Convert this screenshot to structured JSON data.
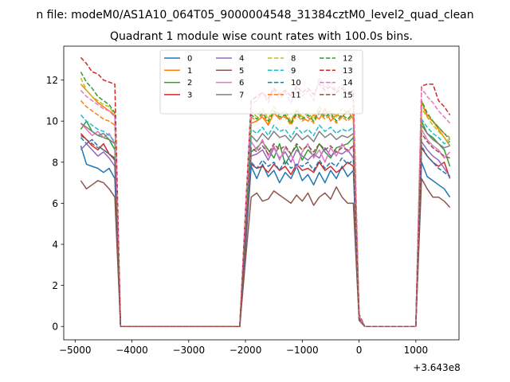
{
  "figure": {
    "suptitle": "n file: modeM0/AS1A10_064T05_9000004548_31384cztM0_level2_quad_clean",
    "offset_label": "+3.643e8"
  },
  "chart_data": {
    "type": "line",
    "title": "Quadrant 1 module wise count rates with 100.0s bins.",
    "xlabel": "",
    "ylabel": "",
    "xlim": [
      -5200,
      1760
    ],
    "ylim": [
      -0.65,
      13.65
    ],
    "x_offset": 364300000,
    "xticks": [
      -5000,
      -4000,
      -3000,
      -2000,
      -1000,
      0,
      1000
    ],
    "xtick_labels": [
      "−5000",
      "−4000",
      "−3000",
      "−2000",
      "−1000",
      "0",
      "1000"
    ],
    "yticks": [
      0,
      2,
      4,
      6,
      8,
      10,
      12
    ],
    "ytick_labels": [
      "0",
      "2",
      "4",
      "6",
      "8",
      "10",
      "12"
    ],
    "grid": false,
    "legend_placement": "top-center",
    "legend_columns": 4,
    "x": [
      -4900,
      -4800,
      -4700,
      -4600,
      -4500,
      -4400,
      -4300,
      -4200,
      -4100,
      -4000,
      -3900,
      -3800,
      -3700,
      -3600,
      -3500,
      -3400,
      -3300,
      -3200,
      -3100,
      -3000,
      -2900,
      -2800,
      -2700,
      -2600,
      -2500,
      -2400,
      -2300,
      -2200,
      -2100,
      -2000,
      -1900,
      -1800,
      -1700,
      -1600,
      -1500,
      -1400,
      -1300,
      -1200,
      -1100,
      -1000,
      -900,
      -800,
      -700,
      -600,
      -500,
      -400,
      -300,
      -200,
      -100,
      0,
      100,
      200,
      300,
      400,
      500,
      600,
      700,
      800,
      900,
      1000,
      1100,
      1200,
      1300,
      1400,
      1500,
      1600
    ],
    "series": [
      {
        "name": "0",
        "color": "#1f77b4",
        "dash": "solid",
        "values": [
          8.8,
          7.9,
          7.8,
          7.7,
          7.5,
          7.7,
          7.2,
          0,
          0,
          0,
          0,
          0,
          0,
          0,
          0,
          0,
          0,
          0,
          0,
          0,
          0,
          0,
          0,
          0,
          0,
          0,
          0,
          0,
          0,
          3.8,
          7.8,
          7.2,
          7.9,
          7.3,
          7.6,
          7.0,
          7.5,
          7.2,
          7.8,
          7.1,
          7.4,
          6.9,
          7.5,
          7.0,
          7.6,
          7.2,
          7.8,
          7.3,
          7.6,
          0.4,
          0,
          0,
          0,
          0,
          0,
          0,
          0,
          0,
          0,
          0,
          8.0,
          7.3,
          7.1,
          6.9,
          6.7,
          6.3
        ]
      },
      {
        "name": "1",
        "color": "#ff7f0e",
        "dash": "solid",
        "values": [
          11.8,
          11.5,
          11.2,
          10.9,
          10.7,
          10.5,
          10.3,
          0,
          0,
          0,
          0,
          0,
          0,
          0,
          0,
          0,
          0,
          0,
          0,
          0,
          0,
          0,
          0,
          0,
          0,
          0,
          0,
          0,
          0,
          5.0,
          9.9,
          10.0,
          10.2,
          9.8,
          10.4,
          10.1,
          10.3,
          9.9,
          10.5,
          10.2,
          10.0,
          10.3,
          10.1,
          10.6,
          10.0,
          10.3,
          10.2,
          10.5,
          10.1,
          0.5,
          0,
          0,
          0,
          0,
          0,
          0,
          0,
          0,
          0,
          0,
          11.0,
          10.2,
          10.0,
          9.6,
          9.2,
          8.8
        ]
      },
      {
        "name": "2",
        "color": "#2ca02c",
        "dash": "solid",
        "values": [
          9.6,
          10.0,
          9.5,
          9.3,
          9.2,
          9.1,
          8.6,
          0,
          0,
          0,
          0,
          0,
          0,
          0,
          0,
          0,
          0,
          0,
          0,
          0,
          0,
          0,
          0,
          0,
          0,
          0,
          0,
          0,
          0,
          4.4,
          8.5,
          8.7,
          9.0,
          8.6,
          8.2,
          8.9,
          7.9,
          8.4,
          8.8,
          8.1,
          8.6,
          8.3,
          8.9,
          8.5,
          8.2,
          8.7,
          8.8,
          8.9,
          9.2,
          0.4,
          0,
          0,
          0,
          0,
          0,
          0,
          0,
          0,
          0,
          0,
          10.0,
          9.4,
          9.2,
          8.9,
          8.6,
          7.8
        ]
      },
      {
        "name": "3",
        "color": "#d62728",
        "dash": "solid",
        "values": [
          9.4,
          9.1,
          8.8,
          8.6,
          8.9,
          8.4,
          8.2,
          0,
          0,
          0,
          0,
          0,
          0,
          0,
          0,
          0,
          0,
          0,
          0,
          0,
          0,
          0,
          0,
          0,
          0,
          0,
          0,
          0,
          0,
          4.0,
          7.9,
          7.7,
          7.8,
          7.5,
          7.9,
          7.6,
          7.8,
          7.4,
          7.9,
          7.6,
          7.7,
          7.5,
          8.0,
          7.6,
          7.8,
          7.5,
          7.7,
          8.0,
          7.8,
          0.4,
          0,
          0,
          0,
          0,
          0,
          0,
          0,
          0,
          0,
          0,
          8.7,
          8.3,
          8.0,
          7.8,
          8.0,
          7.2
        ]
      },
      {
        "name": "4",
        "color": "#9467bd",
        "dash": "solid",
        "values": [
          8.6,
          8.9,
          8.6,
          8.3,
          8.5,
          8.2,
          7.8,
          0,
          0,
          0,
          0,
          0,
          0,
          0,
          0,
          0,
          0,
          0,
          0,
          0,
          0,
          0,
          0,
          0,
          0,
          0,
          0,
          0,
          0,
          4.2,
          8.3,
          8.4,
          8.6,
          8.1,
          8.7,
          8.2,
          8.5,
          8.0,
          8.6,
          8.3,
          8.1,
          8.4,
          8.2,
          8.7,
          8.3,
          8.5,
          8.4,
          8.6,
          8.2,
          0.4,
          0,
          0,
          0,
          0,
          0,
          0,
          0,
          0,
          0,
          0,
          9.0,
          8.6,
          8.3,
          8.1,
          7.7,
          7.3
        ]
      },
      {
        "name": "5",
        "color": "#8c564b",
        "dash": "solid",
        "values": [
          7.1,
          6.7,
          6.9,
          7.1,
          7.0,
          6.7,
          6.3,
          0,
          0,
          0,
          0,
          0,
          0,
          0,
          0,
          0,
          0,
          0,
          0,
          0,
          0,
          0,
          0,
          0,
          0,
          0,
          0,
          0,
          0,
          3.2,
          6.3,
          6.5,
          6.1,
          6.2,
          6.6,
          6.4,
          6.2,
          6.0,
          6.4,
          6.1,
          6.5,
          5.9,
          6.3,
          6.5,
          6.2,
          6.8,
          6.3,
          6.0,
          6.0,
          0.3,
          0,
          0,
          0,
          0,
          0,
          0,
          0,
          0,
          0,
          0,
          7.2,
          6.7,
          6.3,
          6.3,
          6.1,
          5.8
        ]
      },
      {
        "name": "6",
        "color": "#e377c2",
        "dash": "solid",
        "values": [
          9.9,
          9.6,
          9.3,
          9.5,
          9.2,
          9.4,
          8.9,
          0,
          0,
          0,
          0,
          0,
          0,
          0,
          0,
          0,
          0,
          0,
          0,
          0,
          0,
          0,
          0,
          0,
          0,
          0,
          0,
          0,
          0,
          4.6,
          9.0,
          8.6,
          9.1,
          8.3,
          8.8,
          8.1,
          8.7,
          8.4,
          7.7,
          8.5,
          8.9,
          8.2,
          8.6,
          8.0,
          8.7,
          8.3,
          8.9,
          8.5,
          8.8,
          0.4,
          0,
          0,
          0,
          0,
          0,
          0,
          0,
          0,
          0,
          0,
          9.6,
          9.1,
          8.8,
          8.6,
          8.2,
          8.5
        ]
      },
      {
        "name": "7",
        "color": "#7f7f7f",
        "dash": "solid",
        "values": [
          9.9,
          9.7,
          9.5,
          9.3,
          9.4,
          9.1,
          8.9,
          0,
          0,
          0,
          0,
          0,
          0,
          0,
          0,
          0,
          0,
          0,
          0,
          0,
          0,
          0,
          0,
          0,
          0,
          0,
          0,
          0,
          0,
          4.6,
          9.3,
          9.0,
          9.4,
          9.1,
          9.5,
          9.2,
          9.3,
          9.0,
          9.4,
          9.1,
          9.3,
          9.0,
          9.5,
          9.2,
          9.4,
          9.1,
          9.3,
          9.2,
          9.4,
          0.4,
          0,
          0,
          0,
          0,
          0,
          0,
          0,
          0,
          0,
          0,
          9.8,
          9.4,
          9.1,
          8.9,
          8.7,
          8.8
        ]
      },
      {
        "name": "8",
        "color": "#bcbd22",
        "dash": "dashed",
        "values": [
          12.1,
          11.5,
          11.2,
          11.0,
          10.8,
          10.7,
          10.3,
          0,
          0,
          0,
          0,
          0,
          0,
          0,
          0,
          0,
          0,
          0,
          0,
          0,
          0,
          0,
          0,
          0,
          0,
          0,
          0,
          0,
          0,
          5.1,
          10.5,
          10.2,
          10.6,
          10.1,
          10.7,
          10.3,
          10.5,
          10.0,
          10.6,
          10.2,
          10.4,
          10.1,
          10.7,
          10.3,
          10.5,
          10.2,
          10.6,
          10.4,
          10.8,
          0.5,
          0,
          0,
          0,
          0,
          0,
          0,
          0,
          0,
          0,
          0,
          10.6,
          10.2,
          9.8,
          9.5,
          9.2,
          9.0
        ]
      },
      {
        "name": "9",
        "color": "#17becf",
        "dash": "dashed",
        "values": [
          10.3,
          10.0,
          9.8,
          9.6,
          9.5,
          9.3,
          9.0,
          0,
          0,
          0,
          0,
          0,
          0,
          0,
          0,
          0,
          0,
          0,
          0,
          0,
          0,
          0,
          0,
          0,
          0,
          0,
          0,
          0,
          0,
          4.8,
          9.6,
          9.4,
          9.7,
          9.3,
          9.8,
          9.5,
          9.6,
          9.2,
          9.7,
          9.4,
          9.6,
          9.3,
          9.8,
          9.5,
          9.7,
          9.4,
          9.6,
          9.5,
          9.7,
          0.4,
          0,
          0,
          0,
          0,
          0,
          0,
          0,
          0,
          0,
          0,
          10.1,
          9.7,
          9.4,
          9.2,
          8.9,
          9.0
        ]
      },
      {
        "name": "10",
        "color": "#1f77b4",
        "dash": "dashed",
        "values": [
          9.2,
          8.9,
          9.1,
          8.8,
          8.6,
          8.4,
          8.1,
          0,
          0,
          0,
          0,
          0,
          0,
          0,
          0,
          0,
          0,
          0,
          0,
          0,
          0,
          0,
          0,
          0,
          0,
          0,
          0,
          0,
          0,
          4.1,
          8.0,
          7.7,
          8.1,
          7.8,
          8.0,
          7.6,
          8.1,
          7.7,
          7.9,
          7.8,
          8.0,
          7.6,
          8.1,
          7.7,
          8.0,
          7.8,
          8.2,
          7.9,
          8.1,
          0.4,
          0,
          0,
          0,
          0,
          0,
          0,
          0,
          0,
          0,
          0,
          8.8,
          8.3,
          8.0,
          7.7,
          7.5,
          7.3
        ]
      },
      {
        "name": "11",
        "color": "#ff7f0e",
        "dash": "dashed",
        "values": [
          11.0,
          10.7,
          10.5,
          10.3,
          10.1,
          10.0,
          9.8,
          0,
          0,
          0,
          0,
          0,
          0,
          0,
          0,
          0,
          0,
          0,
          0,
          0,
          0,
          0,
          0,
          0,
          0,
          0,
          0,
          0,
          0,
          5.0,
          10.2,
          10.0,
          10.3,
          9.9,
          10.4,
          10.1,
          10.2,
          9.8,
          10.3,
          10.0,
          10.2,
          9.9,
          10.4,
          10.1,
          10.3,
          9.9,
          10.2,
          10.0,
          10.3,
          0.5,
          0,
          0,
          0,
          0,
          0,
          0,
          0,
          0,
          0,
          0,
          10.8,
          10.3,
          10.0,
          9.7,
          9.4,
          9.2
        ]
      },
      {
        "name": "12",
        "color": "#2ca02c",
        "dash": "dashed",
        "values": [
          12.4,
          11.9,
          11.6,
          11.2,
          11.0,
          10.8,
          10.4,
          0,
          0,
          0,
          0,
          0,
          0,
          0,
          0,
          0,
          0,
          0,
          0,
          0,
          0,
          0,
          0,
          0,
          0,
          0,
          0,
          0,
          0,
          5.1,
          10.3,
          10.1,
          10.4,
          10.0,
          10.5,
          10.2,
          10.3,
          9.9,
          10.4,
          10.1,
          10.3,
          10.0,
          10.5,
          10.2,
          10.4,
          10.0,
          10.3,
          10.1,
          10.4,
          0.5,
          0,
          0,
          0,
          0,
          0,
          0,
          0,
          0,
          0,
          0,
          11.0,
          10.4,
          10.0,
          9.7,
          9.4,
          9.1
        ]
      },
      {
        "name": "13",
        "color": "#d62728",
        "dash": "dashed",
        "values": [
          13.1,
          12.8,
          12.4,
          12.3,
          12.0,
          11.9,
          11.8,
          0,
          0,
          0,
          0,
          0,
          0,
          0,
          0,
          0,
          0,
          0,
          0,
          0,
          0,
          0,
          0,
          0,
          0,
          0,
          0,
          0,
          0,
          5.6,
          11.0,
          11.2,
          11.4,
          11.1,
          11.6,
          11.3,
          11.5,
          11.2,
          11.7,
          11.4,
          11.6,
          11.3,
          11.8,
          11.5,
          11.7,
          11.4,
          11.6,
          11.3,
          11.5,
          0.6,
          0,
          0,
          0,
          0,
          0,
          0,
          0,
          0,
          0,
          0,
          11.7,
          11.8,
          11.8,
          11.0,
          10.7,
          10.3
        ]
      },
      {
        "name": "14",
        "color": "#e377c2",
        "dash": "dashed",
        "values": [
          11.5,
          11.2,
          11.0,
          10.8,
          10.6,
          10.5,
          10.2,
          0,
          0,
          0,
          0,
          0,
          0,
          0,
          0,
          0,
          0,
          0,
          0,
          0,
          0,
          0,
          0,
          0,
          0,
          0,
          0,
          0,
          0,
          5.4,
          10.8,
          11.0,
          11.4,
          10.9,
          11.5,
          11.1,
          11.4,
          10.9,
          11.6,
          11.2,
          11.5,
          11.0,
          12.1,
          11.6,
          11.9,
          11.5,
          11.8,
          11.3,
          11.0,
          0.5,
          0,
          0,
          0,
          0,
          0,
          0,
          0,
          0,
          0,
          0,
          11.6,
          11.2,
          10.9,
          10.5,
          10.2,
          9.9
        ]
      },
      {
        "name": "15",
        "color": "#8c564b",
        "dash": "dashed",
        "values": [
          9.3,
          9.1,
          8.9,
          8.7,
          8.6,
          8.4,
          8.1,
          0,
          0,
          0,
          0,
          0,
          0,
          0,
          0,
          0,
          0,
          0,
          0,
          0,
          0,
          0,
          0,
          0,
          0,
          0,
          0,
          0,
          0,
          4.5,
          8.7,
          8.5,
          8.8,
          8.4,
          8.9,
          8.6,
          8.8,
          8.4,
          8.9,
          8.6,
          8.8,
          8.5,
          8.9,
          8.6,
          8.8,
          8.5,
          8.7,
          8.6,
          8.8,
          0.4,
          0,
          0,
          0,
          0,
          0,
          0,
          0,
          0,
          0,
          0,
          9.4,
          9.0,
          8.7,
          8.5,
          8.3,
          8.2
        ]
      }
    ]
  }
}
